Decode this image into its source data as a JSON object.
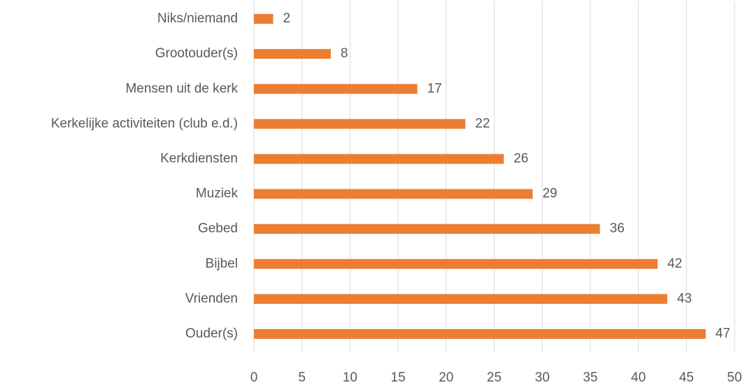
{
  "chart_data": {
    "type": "bar",
    "orientation": "horizontal",
    "categories": [
      "Niks/niemand",
      "Grootouder(s)",
      "Mensen uit de kerk",
      "Kerkelijke activiteiten (club e.d.)",
      "Kerkdiensten",
      "Muziek",
      "Gebed",
      "Bijbel",
      "Vrienden",
      "Ouder(s)"
    ],
    "values": [
      2,
      8,
      17,
      22,
      26,
      29,
      36,
      42,
      43,
      47
    ],
    "color": "#ed7d31",
    "xlim": [
      0,
      50
    ],
    "xticks": [
      0,
      5,
      10,
      15,
      20,
      25,
      30,
      35,
      40,
      45,
      50
    ],
    "grid": true,
    "data_labels": true
  }
}
